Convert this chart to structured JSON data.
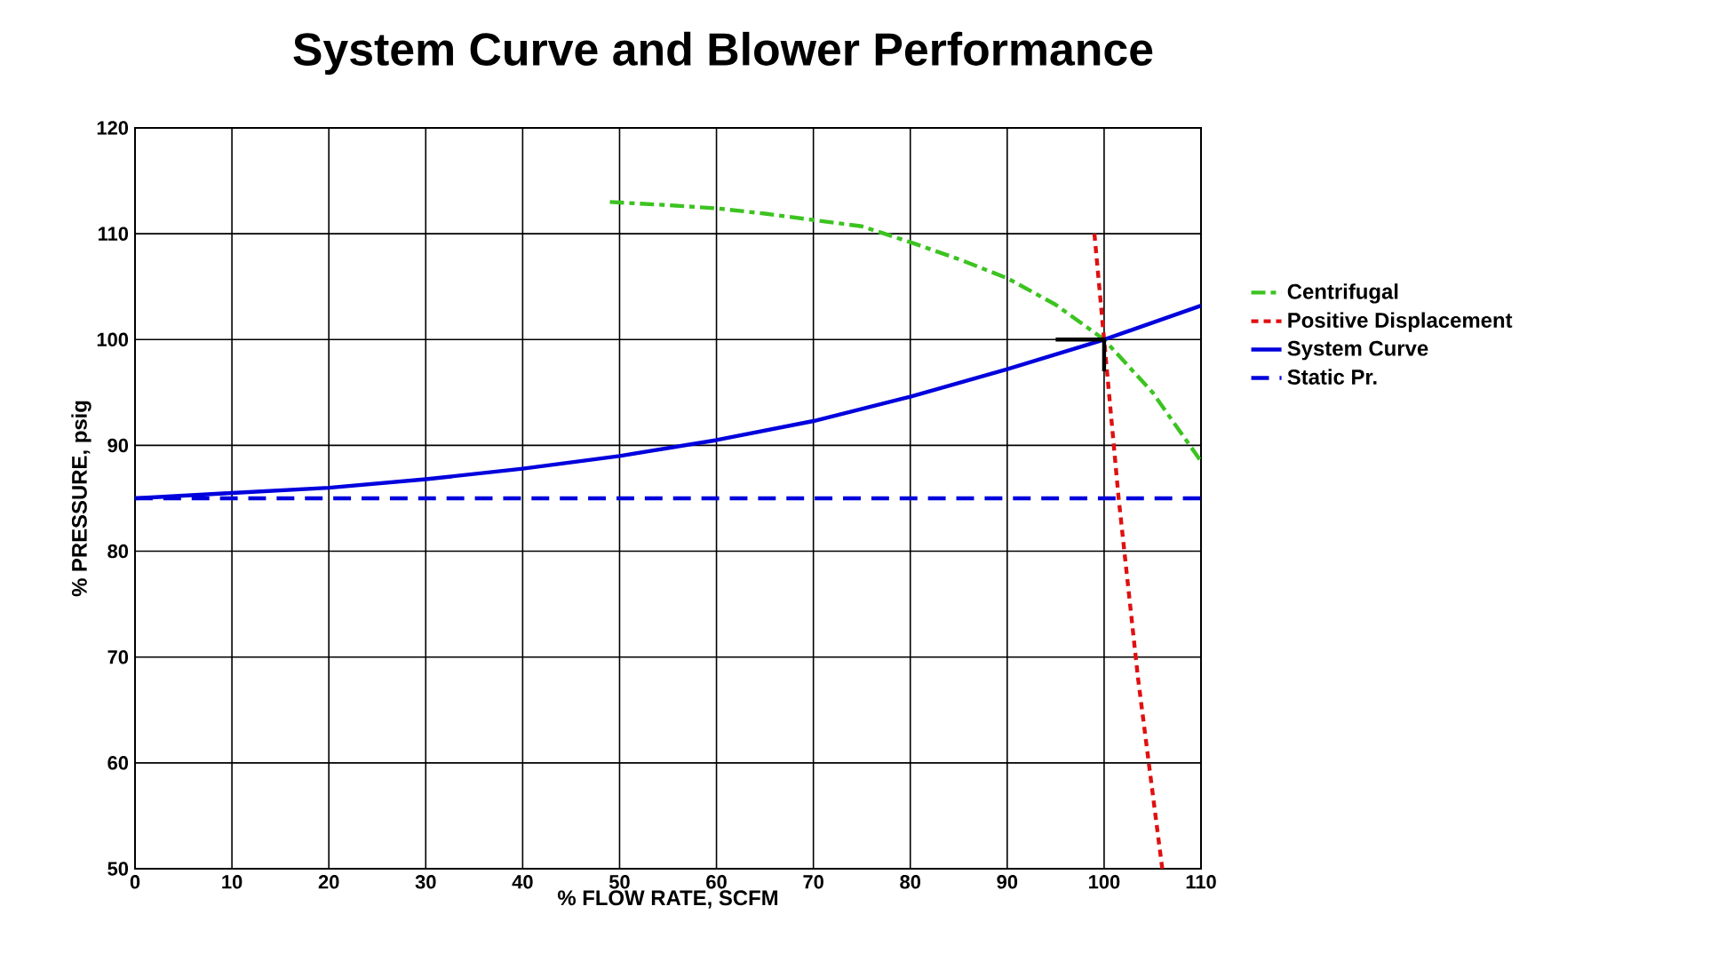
{
  "chart_data": {
    "type": "line",
    "title": "System Curve and Blower Performance",
    "xlabel": "% FLOW RATE, SCFM",
    "ylabel": "% PRESSURE, psig",
    "xlim": [
      0,
      110
    ],
    "ylim": [
      50,
      120
    ],
    "xticks": [
      0,
      10,
      20,
      30,
      40,
      50,
      60,
      70,
      80,
      90,
      100,
      110
    ],
    "yticks": [
      50,
      60,
      70,
      80,
      90,
      100,
      110,
      120
    ],
    "grid": true,
    "legend": "right",
    "marker": "none",
    "series": [
      {
        "name": "Centrifugal",
        "color": "#3cc320",
        "line_style": "dashdot",
        "x": [
          49,
          55,
          60,
          65,
          70,
          75,
          80,
          85,
          90,
          95,
          100,
          105,
          110
        ],
        "values": [
          113,
          112.7,
          112.4,
          111.9,
          111.3,
          110.7,
          109.2,
          107.6,
          105.8,
          103.3,
          100,
          95,
          88.5
        ]
      },
      {
        "name": "Positive Displacement",
        "color": "#e01010",
        "line_style": "dotted",
        "x": [
          99,
          100,
          101.5,
          103.5,
          106
        ],
        "values": [
          110,
          100,
          85,
          68,
          50
        ]
      },
      {
        "name": "System Curve",
        "color": "#0000dd",
        "line_style": "solid",
        "x": [
          0,
          10,
          20,
          30,
          40,
          50,
          60,
          70,
          80,
          90,
          100,
          110
        ],
        "values": [
          85,
          85.5,
          86,
          86.8,
          87.8,
          89,
          90.5,
          92.3,
          94.6,
          97.2,
          100,
          103.2
        ]
      },
      {
        "name": "Static Pr.",
        "color": "#0000dd",
        "line_style": "dashed",
        "x": [
          0,
          110
        ],
        "values": [
          85,
          85
        ]
      },
      {
        "color": "#000000",
        "line_style": "solid",
        "x": [
          95,
          100,
          100
        ],
        "values": [
          100,
          100,
          97
        ]
      }
    ]
  }
}
